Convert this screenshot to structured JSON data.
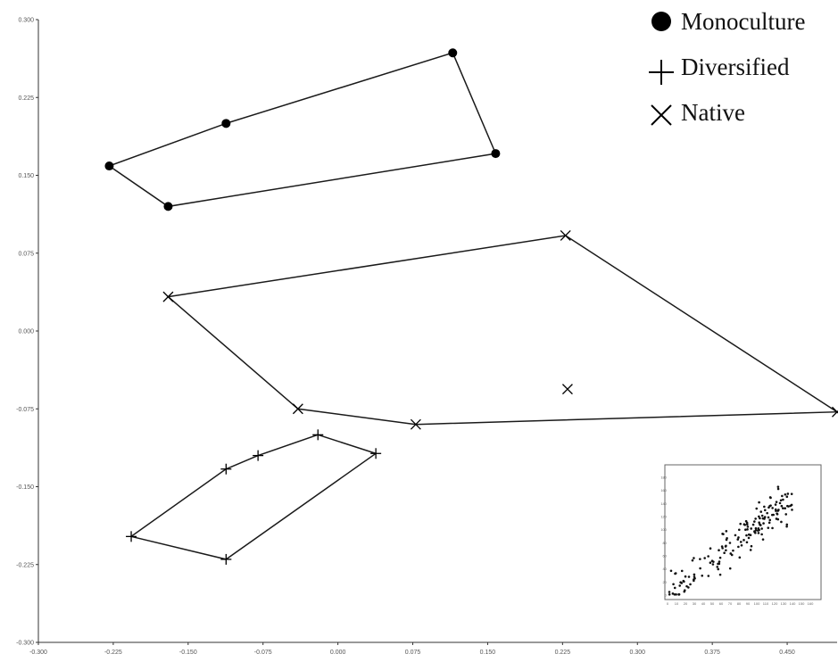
{
  "chart_data": {
    "type": "scatter",
    "xlim": [
      -0.3,
      0.5
    ],
    "ylim": [
      -0.3,
      0.3
    ],
    "x_ticks": [
      "-0.300",
      "-0.225",
      "-0.150",
      "-0.075",
      "0.000",
      "0.075",
      "0.150",
      "0.225",
      "0.300",
      "0.375",
      "0.450"
    ],
    "y_ticks": [
      "-0.300",
      "-0.225",
      "-0.150",
      "-0.075",
      "0.000",
      "0.075",
      "0.150",
      "0.225",
      "0.300"
    ],
    "grid": false,
    "legend_position": "top-right",
    "hulls_drawn": true,
    "series": [
      {
        "name": "Monoculture",
        "marker": "filled-circle",
        "points": [
          [
            -0.229,
            0.159
          ],
          [
            -0.17,
            0.12
          ],
          [
            -0.112,
            0.2
          ],
          [
            0.115,
            0.268
          ],
          [
            0.158,
            0.171
          ]
        ]
      },
      {
        "name": "Diversified",
        "marker": "plus",
        "points": [
          [
            -0.207,
            -0.198
          ],
          [
            -0.112,
            -0.22
          ],
          [
            -0.112,
            -0.133
          ],
          [
            -0.08,
            -0.12
          ],
          [
            -0.02,
            -0.1
          ],
          [
            0.038,
            -0.118
          ]
        ]
      },
      {
        "name": "Native",
        "marker": "cross",
        "points": [
          [
            -0.17,
            0.033
          ],
          [
            -0.04,
            -0.075
          ],
          [
            0.078,
            -0.09
          ],
          [
            0.228,
            0.092
          ],
          [
            0.23,
            -0.056
          ],
          [
            0.5,
            -0.078
          ]
        ]
      }
    ]
  },
  "inset": {
    "type": "scatter",
    "xlim": [
      0,
      160
    ],
    "ylim": [
      0,
      180
    ],
    "x_ticks": [
      "0",
      "10",
      "20",
      "30",
      "40",
      "50",
      "60",
      "70",
      "80",
      "90",
      "100",
      "110",
      "120",
      "130",
      "140",
      "150",
      "160"
    ],
    "y_ticks": [
      "0",
      "10",
      "20",
      "30",
      "40",
      "50",
      "60",
      "70",
      "80",
      "90",
      "100",
      "110",
      "120",
      "130",
      "140",
      "150",
      "160",
      "170",
      "180"
    ],
    "n_points": 170,
    "slope": 1.0,
    "intercept": 5
  }
}
